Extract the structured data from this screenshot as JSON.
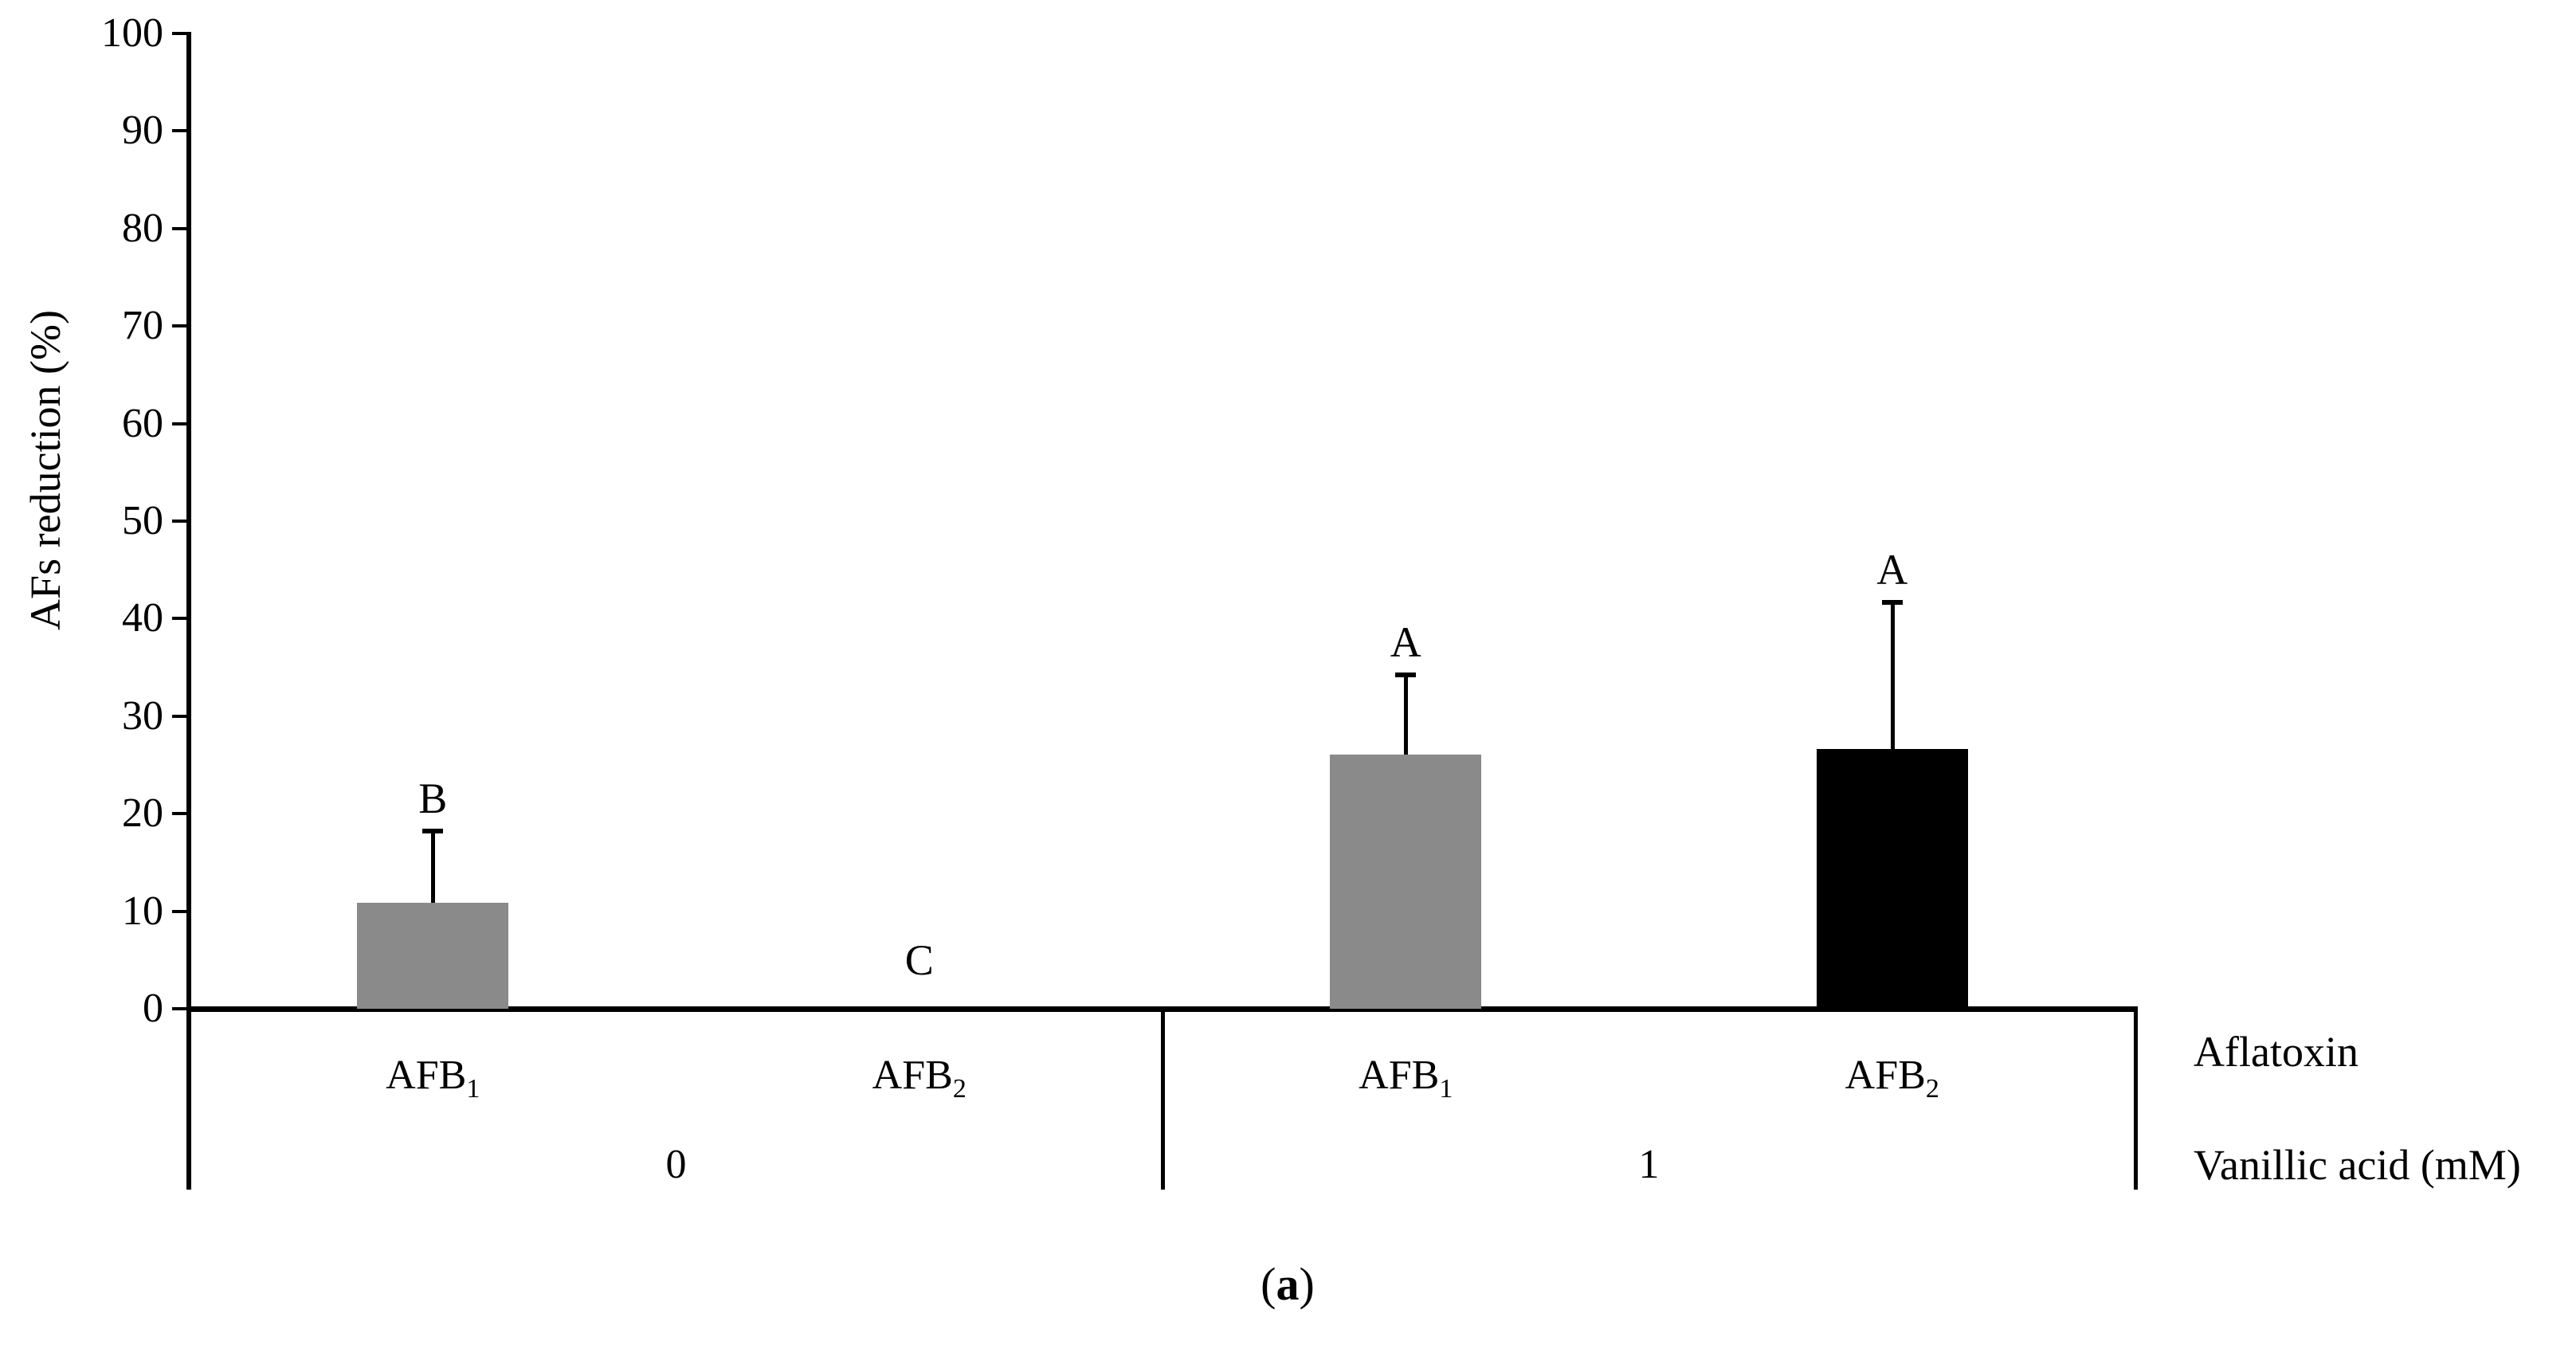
{
  "chart_data": {
    "type": "bar",
    "title": "",
    "ylabel": "AFs reduction (%)",
    "ylim": [
      0,
      100
    ],
    "yticks": [
      0,
      10,
      20,
      30,
      40,
      50,
      60,
      70,
      80,
      90,
      100
    ],
    "grid": false,
    "legend": "none",
    "error_bars": "upper-only",
    "category_axis_label": "Aflatoxin",
    "group_axis_label": "Vanillic acid (mM)",
    "caption_prefix": "(",
    "caption_letter": "a",
    "caption_suffix": ")",
    "bar_color_gray": "#8a8a8a",
    "bar_color_black": "#000000",
    "groups": [
      {
        "label": "0",
        "bars": [
          {
            "category_base": "AFB",
            "category_sub": "1",
            "value": 10.9,
            "error_plus": 7.3,
            "sig_letter": "B",
            "color": "#8a8a8a"
          },
          {
            "category_base": "AFB",
            "category_sub": "2",
            "value": 0,
            "error_plus": 0,
            "sig_letter": "C",
            "color": "#8a8a8a"
          }
        ]
      },
      {
        "label": "1",
        "bars": [
          {
            "category_base": "AFB",
            "category_sub": "1",
            "value": 26.1,
            "error_plus": 8.1,
            "sig_letter": "A",
            "color": "#8a8a8a"
          },
          {
            "category_base": "AFB",
            "category_sub": "2",
            "value": 26.6,
            "error_plus": 15.1,
            "sig_letter": "A",
            "color": "#000000"
          }
        ]
      }
    ]
  }
}
